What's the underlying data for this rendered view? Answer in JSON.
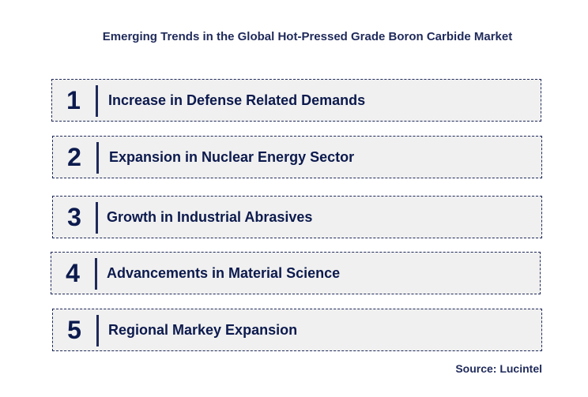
{
  "title": "Emerging Trends in the Global Hot-Pressed Grade Boron Carbide Market",
  "trends": [
    {
      "number": "1",
      "label": "Increase in Defense Related Demands"
    },
    {
      "number": "2",
      "label": "Expansion in Nuclear Energy Sector"
    },
    {
      "number": "3",
      "label": "Growth in Industrial Abrasives"
    },
    {
      "number": "4",
      "label": "Advancements in Material Science"
    },
    {
      "number": "5",
      "label": "Regional Markey Expansion"
    }
  ],
  "source": "Source: Lucintel",
  "colors": {
    "text": "#0c1a4d",
    "box_fill": "#f0f0f0",
    "border": "#1f2a5a"
  }
}
